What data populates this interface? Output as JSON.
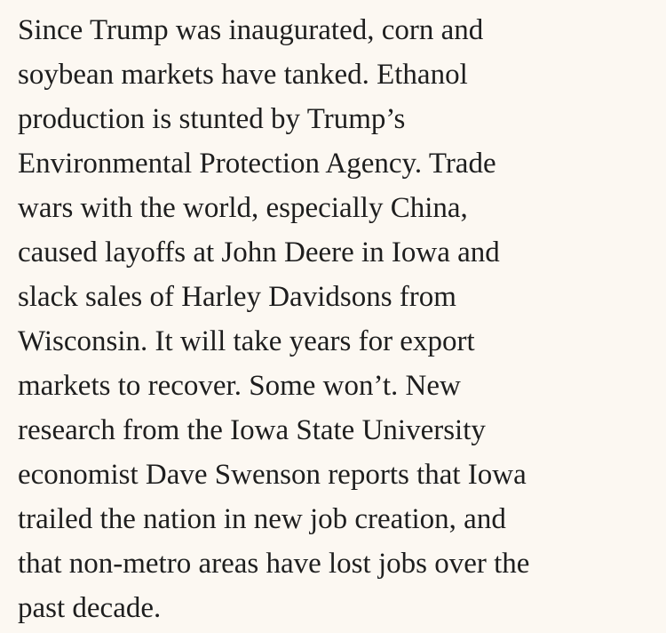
{
  "paragraph": {
    "lines": [
      "Since Trump was inaugurated, corn and",
      "soybean markets have tanked. Ethanol",
      "production is stunted by Trump’s",
      "Environmental Protection Agency. Trade",
      "wars with the world, especially China,",
      "caused layoffs at John Deere in Iowa and",
      "slack sales of Harley Davidsons from",
      "Wisconsin. It will take years for export",
      "markets to recover. Some won’t. New",
      "research from the Iowa State University",
      "economist Dave Swenson reports that Iowa",
      "trailed the nation in new job creation, and",
      "that non-metro areas have lost jobs over the",
      "past decade."
    ]
  }
}
